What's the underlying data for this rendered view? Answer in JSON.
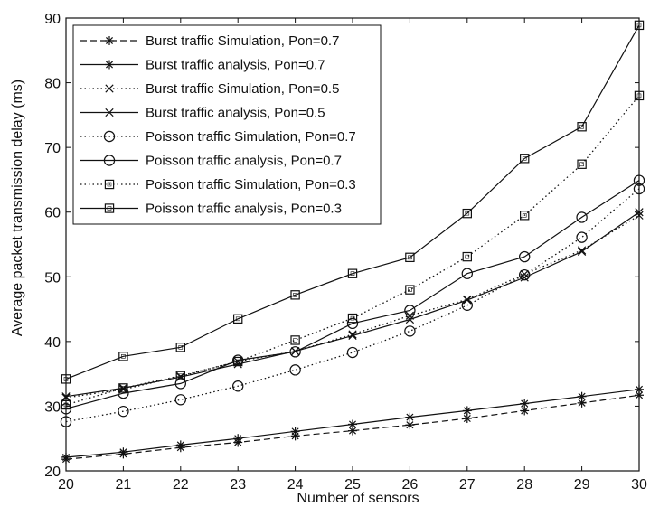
{
  "chart_data": {
    "type": "line",
    "title": "",
    "xlabel": "Number of sensors",
    "ylabel": "Average packet transmission delay (ms)",
    "xlim": [
      20,
      30
    ],
    "ylim": [
      20,
      90
    ],
    "xticks": [
      "20",
      "21",
      "22",
      "23",
      "24",
      "25",
      "26",
      "27",
      "28",
      "29",
      "30"
    ],
    "yticks": [
      "20",
      "30",
      "40",
      "50",
      "60",
      "70",
      "80",
      "90"
    ],
    "grid": false,
    "legend_position": "top-left",
    "x": [
      20,
      21,
      22,
      23,
      24,
      25,
      26,
      27,
      28,
      29,
      30
    ],
    "series": [
      {
        "name": "Burst traffic Simulation, Pon=0.7",
        "line": "dashed",
        "marker": "asterisk",
        "color": "#111111",
        "values": [
          21.8,
          22.6,
          23.6,
          24.4,
          25.4,
          26.2,
          27.1,
          28.1,
          29.3,
          30.5,
          31.7
        ]
      },
      {
        "name": "Burst traffic analysis, Pon=0.7",
        "line": "solid",
        "marker": "asterisk",
        "color": "#111111",
        "values": [
          22.1,
          22.9,
          24.0,
          25.0,
          26.1,
          27.2,
          28.3,
          29.3,
          30.4,
          31.5,
          32.6
        ]
      },
      {
        "name": "Burst traffic Simulation, Pon=0.5",
        "line": "dotted",
        "marker": "x",
        "color": "#111111",
        "values": [
          31.3,
          32.6,
          34.6,
          36.9,
          38.5,
          41.1,
          44.0,
          46.5,
          50.4,
          54.1,
          59.5
        ]
      },
      {
        "name": "Burst traffic analysis, Pon=0.5",
        "line": "solid",
        "marker": "x",
        "color": "#111111",
        "values": [
          31.5,
          32.8,
          34.5,
          36.5,
          38.5,
          40.9,
          43.4,
          46.4,
          49.9,
          53.9,
          60.0
        ]
      },
      {
        "name": "Poisson traffic Simulation, Pon=0.7",
        "line": "dotted",
        "marker": "circle",
        "color": "#111111",
        "values": [
          27.6,
          29.2,
          31.0,
          33.1,
          35.6,
          38.3,
          41.6,
          45.6,
          50.3,
          56.1,
          63.6
        ]
      },
      {
        "name": "Poisson traffic analysis, Pon=0.7",
        "line": "solid",
        "marker": "circle",
        "color": "#111111",
        "values": [
          29.6,
          32.0,
          33.5,
          37.1,
          38.4,
          42.8,
          44.8,
          50.5,
          53.1,
          59.2,
          64.9
        ]
      },
      {
        "name": "Poisson traffic Simulation, Pon=0.3",
        "line": "dotted",
        "marker": "square",
        "color": "#111111",
        "values": [
          30.2,
          32.8,
          34.7,
          36.9,
          40.2,
          43.6,
          48.0,
          53.1,
          59.5,
          67.4,
          78.0
        ]
      },
      {
        "name": "Poisson traffic analysis, Pon=0.3",
        "line": "solid",
        "marker": "square",
        "color": "#111111",
        "values": [
          34.2,
          37.7,
          39.1,
          43.5,
          47.2,
          50.5,
          53.0,
          59.8,
          68.3,
          73.2,
          88.9
        ]
      }
    ]
  }
}
